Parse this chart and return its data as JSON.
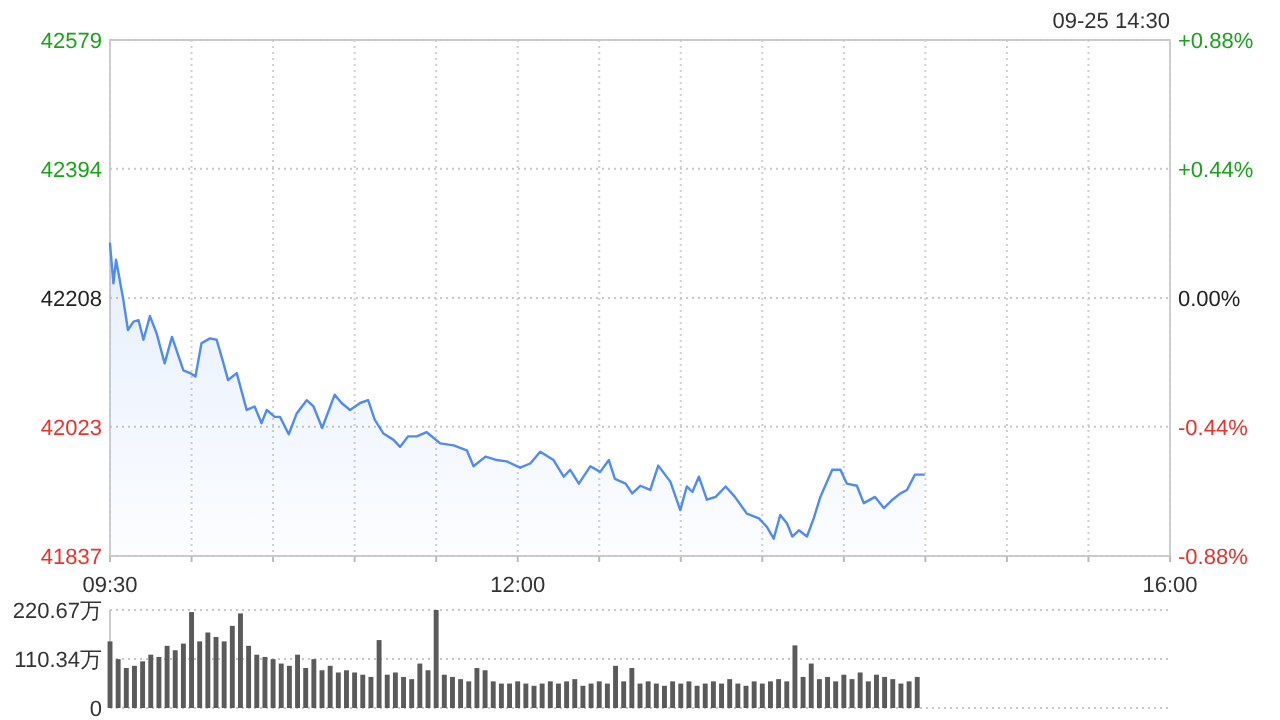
{
  "chart_data": [
    {
      "type": "area",
      "annotations": [
        "09-25 14:30"
      ],
      "grid": true,
      "xlim": [
        9.5,
        16
      ],
      "xticks": [
        {
          "value": 9.5,
          "label": "09:30"
        },
        {
          "value": 10,
          "label": null
        },
        {
          "value": 10.5,
          "label": null
        },
        {
          "value": 11,
          "label": null
        },
        {
          "value": 11.5,
          "label": null
        },
        {
          "value": 12,
          "label": "12:00"
        },
        {
          "value": 12.5,
          "label": null
        },
        {
          "value": 13,
          "label": null
        },
        {
          "value": 13.5,
          "label": null
        },
        {
          "value": 14,
          "label": null
        },
        {
          "value": 14.5,
          "label": null
        },
        {
          "value": 15,
          "label": null
        },
        {
          "value": 15.5,
          "label": null
        },
        {
          "value": 16,
          "label": "16:00"
        }
      ],
      "ylim": [
        41837,
        42579
      ],
      "yticks": [
        41837,
        42023,
        42208,
        42394,
        42579
      ],
      "y2lim": [
        -0.88,
        0.88
      ],
      "y2ticks": [
        {
          "value": -0.88,
          "label": "-0.88%"
        },
        {
          "value": -0.44,
          "label": "-0.44%"
        },
        {
          "value": 0,
          "label": "0.00%"
        },
        {
          "value": 0.44,
          "label": "+0.44%"
        },
        {
          "value": 0.88,
          "label": "+0.88%"
        }
      ],
      "series": [
        {
          "color": "#4f8bf0",
          "x": [
            9.5,
            9.521,
            9.537,
            9.582,
            9.61,
            9.644,
            9.675,
            9.705,
            9.745,
            9.786,
            9.835,
            9.88,
            9.95,
            9.991,
            10.024,
            10.061,
            10.113,
            10.154,
            10.196,
            10.224,
            10.277,
            10.338,
            10.387,
            10.429,
            10.461,
            10.51,
            10.543,
            10.596,
            10.645,
            10.706,
            10.748,
            10.801,
            10.878,
            10.92,
            10.972,
            11.034,
            11.083,
            11.123,
            11.177,
            11.239,
            11.279,
            11.328,
            11.381,
            11.442,
            11.525,
            11.607,
            11.688,
            11.729,
            11.803,
            11.872,
            11.933,
            12.015,
            12.077,
            12.138,
            12.22,
            12.282,
            12.322,
            12.375,
            12.445,
            12.506,
            12.559,
            12.596,
            12.662,
            12.702,
            12.752,
            12.813,
            12.862,
            12.936,
            12.997,
            13.037,
            13.071,
            13.111,
            13.16,
            13.214,
            13.275,
            13.332,
            13.405,
            13.479,
            13.528,
            13.57,
            13.61,
            13.651,
            13.684,
            13.724,
            13.774,
            13.815,
            13.856,
            13.929,
            13.979,
            14.019,
            14.08,
            14.122,
            14.191,
            14.245,
            14.298,
            14.347,
            14.387,
            14.436,
            14.49
          ],
          "values": [
            42286,
            42229,
            42263,
            42205,
            42162,
            42174,
            42176,
            42148,
            42182,
            42157,
            42114,
            42152,
            42104,
            42100,
            42095,
            42143,
            42150,
            42148,
            42114,
            42090,
            42100,
            42047,
            42052,
            42028,
            42047,
            42037,
            42037,
            42012,
            42042,
            42061,
            42052,
            42021,
            42069,
            42057,
            42047,
            42057,
            42061,
            42033,
            42013,
            42004,
            41994,
            42009,
            42009,
            42015,
            41999,
            41996,
            41989,
            41966,
            41980,
            41975,
            41973,
            41964,
            41970,
            41987,
            41975,
            41951,
            41961,
            41941,
            41966,
            41958,
            41975,
            41948,
            41941,
            41927,
            41938,
            41932,
            41967,
            41944,
            41903,
            41937,
            41929,
            41951,
            41918,
            41922,
            41937,
            41922,
            41898,
            41891,
            41879,
            41862,
            41896,
            41884,
            41865,
            41874,
            41865,
            41891,
            41922,
            41961,
            41961,
            41941,
            41938,
            41913,
            41922,
            41906,
            41918,
            41927,
            41932,
            41954,
            41954
          ]
        }
      ]
    },
    {
      "type": "bar",
      "grid": "y",
      "tick_labels": "y",
      "xlim": [
        9.5,
        16
      ],
      "ylim": [
        0,
        220.67
      ],
      "yticks": [
        0,
        {
          "value": 110.34,
          "label": "110.34万"
        },
        {
          "value": 220.67,
          "label": "220.67万"
        }
      ],
      "series": [
        {
          "color": "#5a5a5a",
          "x": [
            9.5,
            9.55,
            9.6,
            9.65,
            9.7,
            9.75,
            9.8,
            9.85,
            9.9,
            9.95,
            10,
            10.05,
            10.1,
            10.15,
            10.2,
            10.25,
            10.3,
            10.35,
            10.4,
            10.45,
            10.5,
            10.55,
            10.6,
            10.65,
            10.7,
            10.75,
            10.8,
            10.85,
            10.9,
            10.95,
            11,
            11.05,
            11.1,
            11.15,
            11.2,
            11.25,
            11.3,
            11.35,
            11.4,
            11.45,
            11.5,
            11.55,
            11.6,
            11.65,
            11.7,
            11.75,
            11.8,
            11.85,
            11.9,
            11.95,
            12,
            12.05,
            12.1,
            12.15,
            12.2,
            12.25,
            12.3,
            12.35,
            12.4,
            12.45,
            12.5,
            12.55,
            12.6,
            12.65,
            12.7,
            12.75,
            12.8,
            12.85,
            12.9,
            12.95,
            13,
            13.05,
            13.1,
            13.15,
            13.2,
            13.25,
            13.3,
            13.35,
            13.4,
            13.45,
            13.5,
            13.55,
            13.6,
            13.65,
            13.7,
            13.75,
            13.8,
            13.85,
            13.9,
            13.95,
            14,
            14.05,
            14.1,
            14.15,
            14.2,
            14.25,
            14.3,
            14.35,
            14.4,
            14.45
          ],
          "values": [
            150,
            110,
            90,
            95,
            105,
            120,
            115,
            140,
            130,
            145,
            216,
            150,
            170,
            160,
            150,
            185,
            213,
            140,
            120,
            115,
            110,
            100,
            95,
            120,
            90,
            110,
            85,
            95,
            80,
            85,
            80,
            75,
            70,
            153,
            75,
            80,
            70,
            65,
            100,
            85,
            220.67,
            75,
            70,
            65,
            60,
            90,
            85,
            60,
            55,
            55,
            60,
            55,
            50,
            55,
            60,
            55,
            60,
            65,
            50,
            55,
            60,
            55,
            95,
            60,
            90,
            55,
            60,
            55,
            50,
            60,
            55,
            60,
            50,
            55,
            60,
            55,
            65,
            55,
            50,
            60,
            55,
            60,
            65,
            60,
            141,
            70,
            100,
            65,
            70,
            60,
            75,
            65,
            80,
            60,
            75,
            70,
            65,
            55,
            60,
            70
          ]
        }
      ]
    }
  ]
}
